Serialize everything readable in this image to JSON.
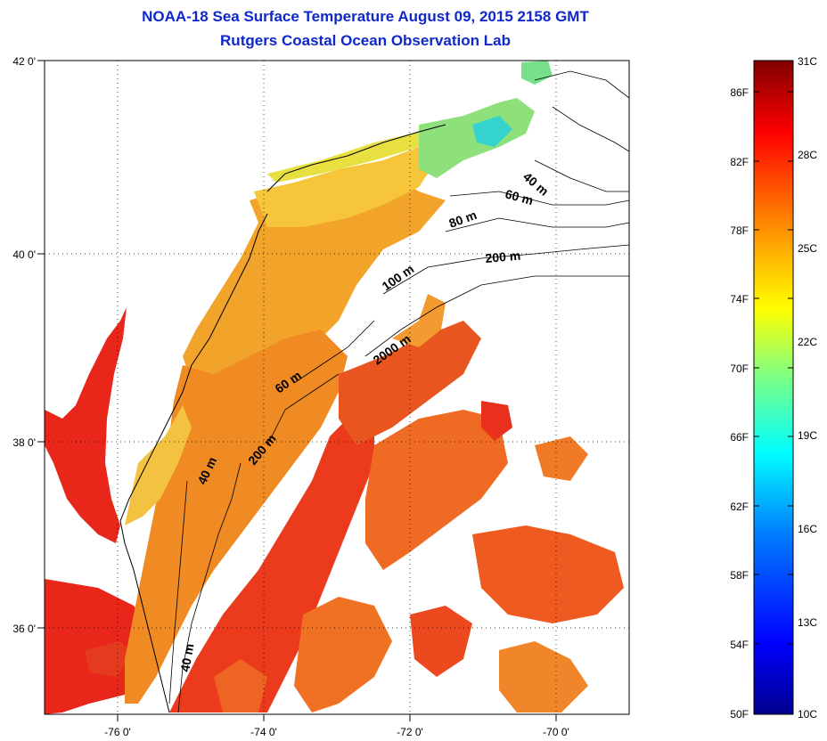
{
  "title": {
    "line1": "NOAA-18 Sea Surface Temperature August 09, 2015 2158 GMT",
    "line2": "Rutgers Coastal Ocean Observation Lab"
  },
  "axes": {
    "lon_labels": [
      "-76 0'",
      "-74 0'",
      "-72 0'",
      "-70 0'"
    ],
    "lat_labels": [
      "42 0'",
      "40 0'",
      "38 0'",
      "36 0'"
    ]
  },
  "contour_labels": [
    "40 m",
    "60 m",
    "80 m",
    "200 m",
    "100 m",
    "2000 m",
    "60 m",
    "200 m",
    "40 m",
    "40 m"
  ],
  "colorbar": {
    "fahrenheit_labels": [
      "86F",
      "82F",
      "78F",
      "74F",
      "70F",
      "66F",
      "62F",
      "58F",
      "54F",
      "50F"
    ],
    "celsius_labels": [
      "31C",
      "28C",
      "25C",
      "22C",
      "19C",
      "16C",
      "13C",
      "10C"
    ],
    "colors": [
      "#00008f",
      "#0000ff",
      "#0080ff",
      "#00ffff",
      "#80ff80",
      "#ffff00",
      "#ff8000",
      "#ff0000",
      "#800000"
    ]
  },
  "chart_data": {
    "type": "heatmap",
    "title": "NOAA-18 Sea Surface Temperature August 09, 2015 2158 GMT",
    "subtitle": "Rutgers Coastal Ocean Observation Lab",
    "xlabel": "",
    "ylabel": "",
    "x_ticks": [
      "-76 0'",
      "-74 0'",
      "-72 0'",
      "-70 0'"
    ],
    "y_ticks": [
      "42 0'",
      "40 0'",
      "38 0'",
      "36 0'"
    ],
    "xlim": [
      -77.0,
      -69.0
    ],
    "ylim": [
      35.0,
      42.0
    ],
    "colorbar_range_C": [
      10,
      31
    ],
    "colorbar_range_F": [
      50,
      88
    ],
    "grid": true
  }
}
